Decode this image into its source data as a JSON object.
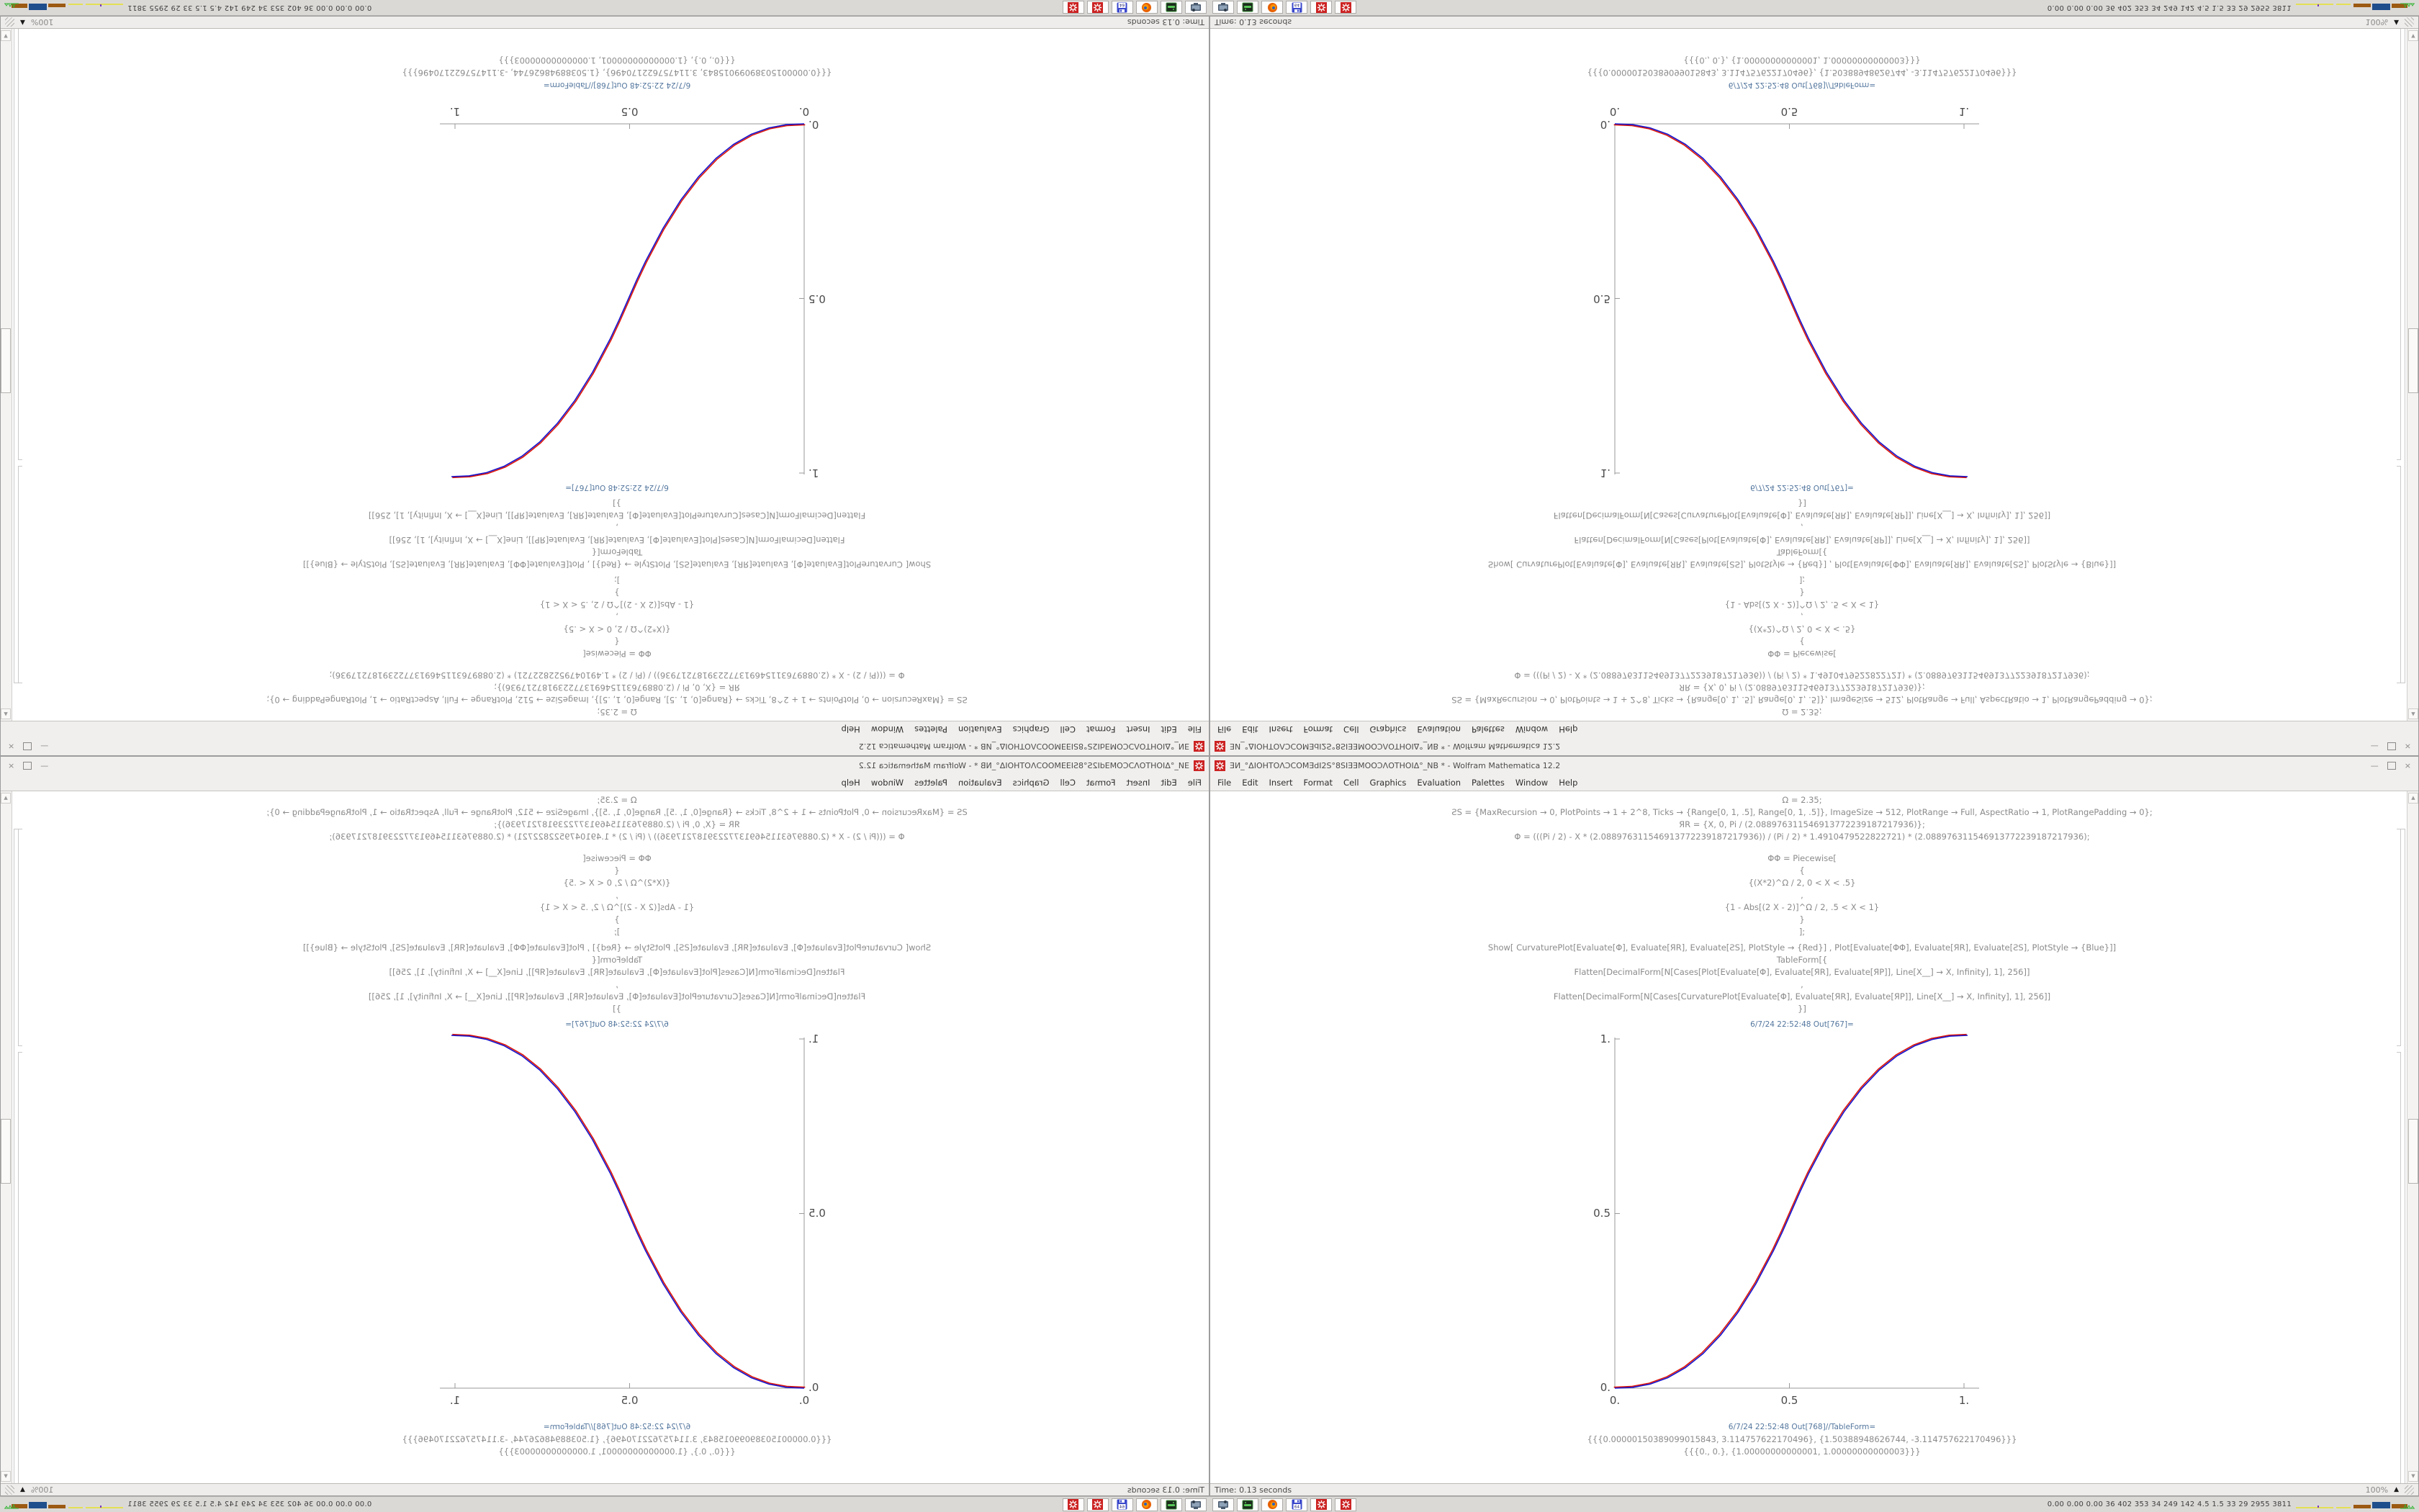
{
  "window": {
    "title": "ƎИ_°ΔIOHTOΛƆCOMƎdI2S°8SIƎƎMOOƆΛOTHOIΔ°_NB * - Wolfram Mathematica 12.2",
    "menu": [
      "File",
      "Edit",
      "Insert",
      "Format",
      "Cell",
      "Graphics",
      "Evaluation",
      "Palettes",
      "Window",
      "Help"
    ],
    "controls": {
      "minimize": "—",
      "close": "×"
    },
    "code_lines": [
      "Ω = 2.35;",
      "ƧS = {MaxRecursion → 0, PlotPoints → 1 + 2^8, Ticks → {Range[0, 1, .5], Range[0, 1, .5]}, ImageSize → 512, PlotRange → Full, AspectRatio → 1, PlotRangePadding → 0};",
      "ЯR = {X, 0, Pi / (2.088976311546913772239187217936)};",
      "Φ = (((Pi / 2) - X * (2.088976311546913772239187217936)) / (Pi / 2) * 1.4910479522822721) * (2.088976311546913772239187217936);",
      "ΦΦ = Piecewise[",
      "{",
      "{(X*2)^Ω / 2, 0 < X < .5}",
      ",",
      "{1 - Abs[(2 X - 2)]^Ω / 2, .5 < X < 1}",
      "}",
      "];",
      "Show[  CurvaturePlot[Evaluate[Φ], Evaluate[ЯR], Evaluate[ƧS], PlotStyle → {Red}]  ,  Plot[Evaluate[ΦΦ], Evaluate[ЯR], Evaluate[ƧS], PlotStyle → {Blue}]]",
      "TableForm[{",
      "Flatten[DecimalForm[N[Cases[Plot[Evaluate[Φ], Evaluate[ЯR], Evaluate[ЯP]], Line[X__] → X, Infinity], 1], 256]]",
      ",",
      "Flatten[DecimalForm[N[Cases[CurvaturePlot[Evaluate[Φ], Evaluate[ЯR], Evaluate[ЯP]], Line[X__] → X, Infinity], 1], 256]]",
      "}]"
    ],
    "outputs": {
      "plot_label": "6/7/24 22:52:48 Out[767]=",
      "table_label": "6/7/24 22:52:48 Out[768]//TableForm=",
      "table_rows": [
        "{{{0.00000150389099015843, 3.114757622170496}, {1.50388948626744, -3.114757622170496}}}",
        "{{{0., 0.}, {1.00000000000001, 1.00000000000003}}}"
      ]
    },
    "status": {
      "left": "Time: 0.13 seconds",
      "zoom": "100%"
    }
  },
  "taskbar": {
    "icons": [
      {
        "name": "screenshot-tool"
      },
      {
        "name": "network-drive"
      },
      {
        "name": "firefox"
      },
      {
        "name": "floppy-64",
        "label": "64"
      },
      {
        "name": "mathematica-gear-1"
      },
      {
        "name": "mathematica-gear-2"
      }
    ],
    "stats": "0.00 0.00 0.00 36 402 353 34 249 142 4.5 1.5 33 29 2955 3811"
  },
  "colors": {
    "red_curve": "#dd1407",
    "blue_curve": "#1512cc",
    "axis": "#9a9a9a",
    "accent_icon_red": "#cc2222"
  },
  "chart_data": {
    "type": "line",
    "title": "",
    "xlabel": "",
    "ylabel": "",
    "xlim": [
      0,
      1
    ],
    "ylim": [
      0,
      1
    ],
    "grid": false,
    "legend_position": "none",
    "x_tick_labels": [
      "0.",
      "0.5",
      "1."
    ],
    "y_tick_labels": [
      "0.",
      "0.5",
      "1."
    ],
    "points": [
      [
        0,
        0
      ],
      [
        0.05,
        0.0022
      ],
      [
        0.1,
        0.0114
      ],
      [
        0.15,
        0.0295
      ],
      [
        0.2,
        0.058
      ],
      [
        0.25,
        0.098
      ],
      [
        0.3,
        0.1506
      ],
      [
        0.35,
        0.2162
      ],
      [
        0.4,
        0.296
      ],
      [
        0.45,
        0.3903
      ],
      [
        0.475,
        0.4433
      ],
      [
        0.5,
        0.5
      ],
      [
        0.525,
        0.5567
      ],
      [
        0.55,
        0.6097
      ],
      [
        0.6,
        0.704
      ],
      [
        0.65,
        0.7838
      ],
      [
        0.7,
        0.8494
      ],
      [
        0.75,
        0.902
      ],
      [
        0.8,
        0.942
      ],
      [
        0.85,
        0.9705
      ],
      [
        0.9,
        0.9886
      ],
      [
        0.95,
        0.9978
      ],
      [
        1,
        1
      ]
    ],
    "series": [
      {
        "name": "CurvaturePlot Φ",
        "color": "#dd1407",
        "style": "Red"
      },
      {
        "name": "Plot ΦΦ Piecewise",
        "color": "#1512cc",
        "style": "Blue"
      }
    ]
  }
}
